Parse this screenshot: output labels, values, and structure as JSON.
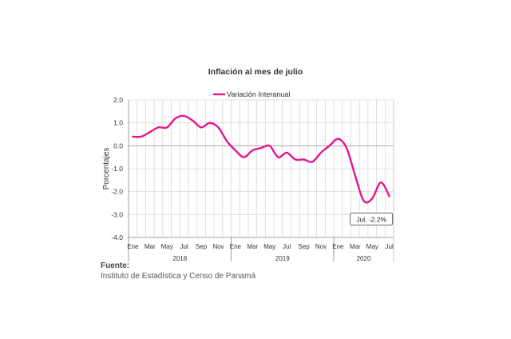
{
  "chart_data": {
    "type": "line",
    "title": "Inflación al mes de julio",
    "ylabel": "Porcentajes",
    "xlabel": "",
    "ylim": [
      -4.0,
      2.0
    ],
    "yticks": [
      "2.0",
      "1.0",
      "0.0",
      "-1.0",
      "-2.0",
      "-3.0",
      "-4.0"
    ],
    "grid": true,
    "legend_position": "top-center",
    "month_labels": [
      "Ene",
      "Mar",
      "May",
      "Jul",
      "Sep",
      "Nov",
      "Ene",
      "Mar",
      "May",
      "Jul",
      "Sep",
      "Nov",
      "Ene",
      "Mar",
      "May",
      "Jul"
    ],
    "years": [
      "2018",
      "2019",
      "2020"
    ],
    "x": [
      "2018-01",
      "2018-02",
      "2018-03",
      "2018-04",
      "2018-05",
      "2018-06",
      "2018-07",
      "2018-08",
      "2018-09",
      "2018-10",
      "2018-11",
      "2018-12",
      "2019-01",
      "2019-02",
      "2019-03",
      "2019-04",
      "2019-05",
      "2019-06",
      "2019-07",
      "2019-08",
      "2019-09",
      "2019-10",
      "2019-11",
      "2019-12",
      "2020-01",
      "2020-02",
      "2020-03",
      "2020-04",
      "2020-05",
      "2020-06",
      "2020-07"
    ],
    "series": [
      {
        "name": "Variación Interanual",
        "color": "#e6158c",
        "values": [
          0.4,
          0.4,
          0.6,
          0.8,
          0.8,
          1.2,
          1.3,
          1.1,
          0.8,
          1.0,
          0.8,
          0.2,
          -0.2,
          -0.5,
          -0.2,
          -0.1,
          0.0,
          -0.5,
          -0.3,
          -0.6,
          -0.6,
          -0.7,
          -0.3,
          0.0,
          0.3,
          -0.1,
          -1.3,
          -2.4,
          -2.3,
          -1.6,
          -2.2
        ]
      }
    ],
    "annotation": "Jul, -2.2%"
  },
  "source": {
    "label": "Fuente:",
    "text": "Instituto de Estadística y Censo de Panamá"
  }
}
